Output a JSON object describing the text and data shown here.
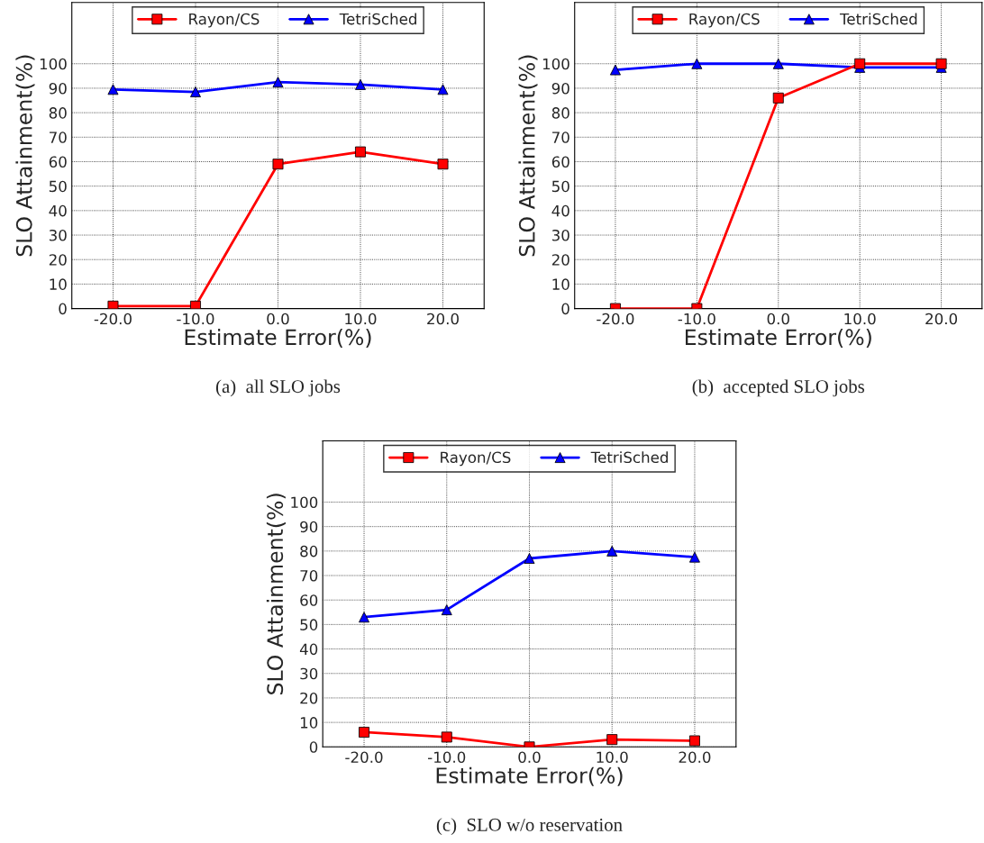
{
  "chart_data": [
    {
      "type": "line",
      "xlabel": "Estimate Error(%)",
      "ylabel": "SLO Attainment(%)",
      "annotations": [
        "(a)  all SLO jobs"
      ],
      "x": [
        -20,
        -10,
        0,
        10,
        20
      ],
      "xlim": [
        -25,
        25
      ],
      "ylim": [
        0,
        125
      ],
      "xticks": [
        {
          "value": -20,
          "label": "-20.0"
        },
        {
          "value": -10,
          "label": "-10.0"
        },
        {
          "value": 0,
          "label": "0.0"
        },
        {
          "value": 10,
          "label": "10.0"
        },
        {
          "value": 20,
          "label": "20.0"
        }
      ],
      "yticks": [
        0,
        10,
        20,
        30,
        40,
        50,
        60,
        70,
        80,
        90,
        100
      ],
      "grid": true,
      "legend": "top",
      "line_style": "solid",
      "series": [
        {
          "name": "Rayon/CS",
          "color": "#ff0000",
          "marker": "square",
          "values": [
            1,
            1,
            59,
            64,
            59
          ]
        },
        {
          "name": "TetriSched",
          "color": "#0000ff",
          "marker": "triangle",
          "values": [
            89.5,
            88.5,
            92.5,
            91.5,
            89.5
          ]
        }
      ]
    },
    {
      "type": "line",
      "xlabel": "Estimate Error(%)",
      "ylabel": "SLO Attainment(%)",
      "annotations": [
        "(b)  accepted SLO jobs"
      ],
      "x": [
        -20,
        -10,
        0,
        10,
        20
      ],
      "xlim": [
        -25,
        25
      ],
      "ylim": [
        0,
        125
      ],
      "xticks": [
        {
          "value": -20,
          "label": "-20.0"
        },
        {
          "value": -10,
          "label": "-10.0"
        },
        {
          "value": 0,
          "label": "0.0"
        },
        {
          "value": 10,
          "label": "10.0"
        },
        {
          "value": 20,
          "label": "20.0"
        }
      ],
      "yticks": [
        0,
        10,
        20,
        30,
        40,
        50,
        60,
        70,
        80,
        90,
        100
      ],
      "grid": true,
      "legend": "top",
      "line_style": "solid",
      "series": [
        {
          "name": "Rayon/CS",
          "color": "#ff0000",
          "marker": "square",
          "values": [
            0,
            0,
            86,
            100,
            100
          ]
        },
        {
          "name": "TetriSched",
          "color": "#0000ff",
          "marker": "triangle",
          "values": [
            97.5,
            100,
            100,
            98.5,
            98.5
          ]
        }
      ]
    },
    {
      "type": "line",
      "xlabel": "Estimate Error(%)",
      "ylabel": "SLO Attainment(%)",
      "annotations": [
        "(c)  SLO w/o reservation"
      ],
      "x": [
        -20,
        -10,
        0,
        10,
        20
      ],
      "xlim": [
        -25,
        25
      ],
      "ylim": [
        0,
        125
      ],
      "xticks": [
        {
          "value": -20,
          "label": "-20.0"
        },
        {
          "value": -10,
          "label": "-10.0"
        },
        {
          "value": 0,
          "label": "0.0"
        },
        {
          "value": 10,
          "label": "10.0"
        },
        {
          "value": 20,
          "label": "20.0"
        }
      ],
      "yticks": [
        0,
        10,
        20,
        30,
        40,
        50,
        60,
        70,
        80,
        90,
        100
      ],
      "grid": true,
      "legend": "top",
      "line_style": "solid",
      "series": [
        {
          "name": "Rayon/CS",
          "color": "#ff0000",
          "marker": "square",
          "values": [
            6,
            4,
            0,
            3,
            2.5
          ]
        },
        {
          "name": "TetriSched",
          "color": "#0000ff",
          "marker": "triangle",
          "values": [
            53,
            56,
            77,
            80,
            77.5
          ]
        }
      ]
    }
  ]
}
